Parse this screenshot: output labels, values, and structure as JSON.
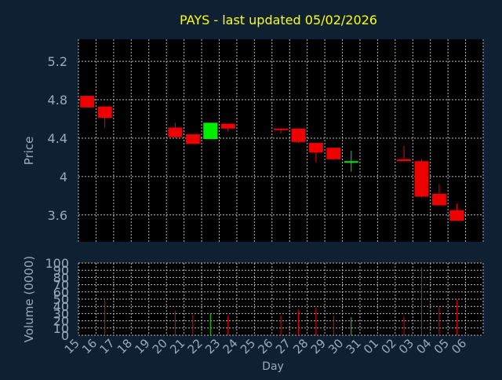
{
  "colors": {
    "background": "#0f2033",
    "plot_background": "#000000",
    "title": "#ffff00",
    "axis_text": "#99aabb",
    "grid": "#bbbbbb",
    "up": "#00ee00",
    "down": "#ee0000"
  },
  "chart_data": [
    {
      "type": "candlestick",
      "title": "PAYS - last updated 05/02/2026",
      "xlabel": "",
      "ylabel": "Price",
      "ylim": [
        3.32,
        5.43
      ],
      "yticks": [
        "3.6",
        "4",
        "4.4",
        "4.8",
        "5.2"
      ],
      "ytick_values": [
        3.6,
        4.0,
        4.4,
        4.8,
        5.2
      ],
      "grid": true,
      "candles": [
        {
          "date": "15",
          "open": 4.84,
          "high": 4.84,
          "low": 4.72,
          "close": 4.72
        },
        {
          "date": "16",
          "open": 4.73,
          "high": 4.73,
          "low": 4.51,
          "close": 4.61
        },
        {
          "date": "20",
          "open": 4.51,
          "high": 4.56,
          "low": 4.4,
          "close": 4.41
        },
        {
          "date": "21",
          "open": 4.44,
          "high": 4.44,
          "low": 4.34,
          "close": 4.34
        },
        {
          "date": "22",
          "open": 4.39,
          "high": 4.56,
          "low": 4.39,
          "close": 4.56
        },
        {
          "date": "23",
          "open": 4.55,
          "high": 4.55,
          "low": 4.47,
          "close": 4.5
        },
        {
          "date": "26",
          "open": 4.5,
          "high": 4.5,
          "low": 4.45,
          "close": 4.49
        },
        {
          "date": "27",
          "open": 4.5,
          "high": 4.5,
          "low": 4.35,
          "close": 4.36
        },
        {
          "date": "28",
          "open": 4.35,
          "high": 4.35,
          "low": 4.15,
          "close": 4.25
        },
        {
          "date": "29",
          "open": 4.3,
          "high": 4.3,
          "low": 4.17,
          "close": 4.18
        },
        {
          "date": "30",
          "open": 4.16,
          "high": 4.27,
          "low": 4.05,
          "close": 4.16
        },
        {
          "date": "02",
          "open": 4.18,
          "high": 4.32,
          "low": 4.16,
          "close": 4.16
        },
        {
          "date": "03",
          "open": 4.16,
          "high": 4.18,
          "low": 3.78,
          "close": 3.79
        },
        {
          "date": "04",
          "open": 3.82,
          "high": 3.92,
          "low": 3.7,
          "close": 3.7
        },
        {
          "date": "05",
          "open": 3.65,
          "high": 3.72,
          "low": 3.54,
          "close": 3.54
        }
      ]
    },
    {
      "type": "bar",
      "title": "",
      "xlabel": "Day",
      "ylabel": "Volume (0000)",
      "ylim": [
        0,
        100
      ],
      "yticks": [
        "0",
        "10",
        "20",
        "30",
        "40",
        "50",
        "60",
        "70",
        "80",
        "90",
        "100"
      ],
      "ytick_values": [
        0,
        10,
        20,
        30,
        40,
        50,
        60,
        70,
        80,
        90,
        100
      ],
      "categories": [
        "15",
        "16",
        "17",
        "18",
        "19",
        "20",
        "21",
        "22",
        "23",
        "24",
        "25",
        "26",
        "27",
        "28",
        "29",
        "30",
        "31",
        "01",
        "02",
        "03",
        "04",
        "05",
        "06"
      ],
      "bars": [
        {
          "date": "16",
          "value": 50,
          "direction": "down"
        },
        {
          "date": "20",
          "value": 34,
          "direction": "down"
        },
        {
          "date": "21",
          "value": 28,
          "direction": "down"
        },
        {
          "date": "22",
          "value": 30,
          "direction": "up"
        },
        {
          "date": "23",
          "value": 27,
          "direction": "down"
        },
        {
          "date": "26",
          "value": 27,
          "direction": "down"
        },
        {
          "date": "27",
          "value": 35,
          "direction": "down"
        },
        {
          "date": "28",
          "value": 38,
          "direction": "down"
        },
        {
          "date": "29",
          "value": 27,
          "direction": "down"
        },
        {
          "date": "30",
          "value": 25,
          "direction": "up"
        },
        {
          "date": "02",
          "value": 26,
          "direction": "down"
        },
        {
          "date": "03",
          "value": 94,
          "direction": "down"
        },
        {
          "date": "04",
          "value": 39,
          "direction": "down"
        },
        {
          "date": "05",
          "value": 49,
          "direction": "down"
        }
      ]
    }
  ]
}
